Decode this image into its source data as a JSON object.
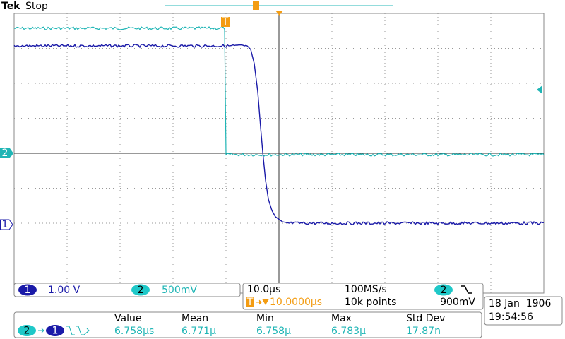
{
  "header": {
    "brand": "Tek",
    "status": "Stop"
  },
  "markers": {
    "trigger": "T",
    "ch2": "2",
    "ch1": "1"
  },
  "channels": [
    {
      "label": "1",
      "scale": "1.00 V"
    },
    {
      "label": "2",
      "scale": "500mV"
    }
  ],
  "timebase": {
    "scale": "10.0µs",
    "sample_rate": "100MS/s",
    "trigger_label": "T",
    "delay": "10.0000µs",
    "record_length": "10k points",
    "trigger_source": "2",
    "trigger_level": "900mV"
  },
  "datetime": {
    "date": "18 Jan  1906",
    "time": "19:54:56"
  },
  "measurement": {
    "source_a": "2",
    "source_b": "1",
    "columns": [
      "Value",
      "Mean",
      "Min",
      "Max",
      "Std Dev"
    ],
    "values": [
      "6.758µs",
      "6.771µ",
      "6.758µ",
      "6.783µ",
      "17.87n"
    ]
  }
}
